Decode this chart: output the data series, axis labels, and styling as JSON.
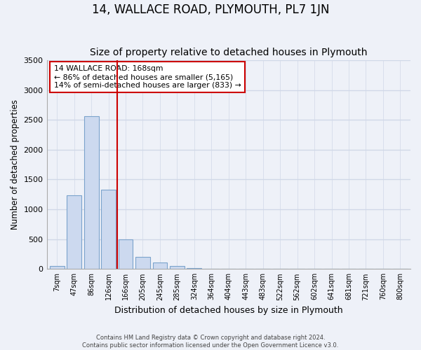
{
  "title": "14, WALLACE ROAD, PLYMOUTH, PL7 1JN",
  "subtitle": "Size of property relative to detached houses in Plymouth",
  "xlabel": "Distribution of detached houses by size in Plymouth",
  "ylabel": "Number of detached properties",
  "bar_labels": [
    "7sqm",
    "47sqm",
    "86sqm",
    "126sqm",
    "166sqm",
    "205sqm",
    "245sqm",
    "285sqm",
    "324sqm",
    "364sqm",
    "404sqm",
    "443sqm",
    "483sqm",
    "522sqm",
    "562sqm",
    "602sqm",
    "641sqm",
    "681sqm",
    "721sqm",
    "760sqm",
    "800sqm"
  ],
  "bar_values": [
    50,
    1230,
    2560,
    1330,
    500,
    200,
    110,
    50,
    10,
    0,
    0,
    0,
    0,
    0,
    0,
    0,
    0,
    0,
    0,
    0,
    0
  ],
  "bar_color": "#ccd9ef",
  "bar_edge_color": "#7ba3cc",
  "red_line_x": 3.5,
  "annotation_line1": "14 WALLACE ROAD: 168sqm",
  "annotation_line2": "← 86% of detached houses are smaller (5,165)",
  "annotation_line3": "14% of semi-detached houses are larger (833) →",
  "annotation_box_color": "white",
  "annotation_box_edge_color": "#cc0000",
  "ylim": [
    0,
    3500
  ],
  "yticks": [
    0,
    500,
    1000,
    1500,
    2000,
    2500,
    3000,
    3500
  ],
  "background_color": "#eef1f8",
  "grid_color": "#d0d8e8",
  "footer_line1": "Contains HM Land Registry data © Crown copyright and database right 2024.",
  "footer_line2": "Contains public sector information licensed under the Open Government Licence v3.0.",
  "title_fontsize": 12,
  "subtitle_fontsize": 10
}
